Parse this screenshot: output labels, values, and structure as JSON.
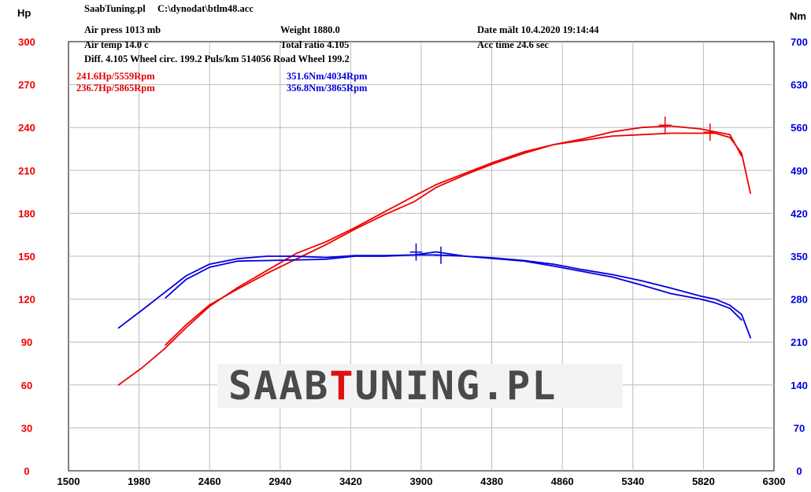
{
  "header": {
    "app_title": "SaabTuning.pl",
    "file_path": "C:\\dynodat\\btlm48.acc",
    "air_press": "Air press  1013 mb",
    "air_temp": "Air temp  14.0 c",
    "diff": "Diff.    4.105  Wheel circ. 199.2  Puls/km  514056  Road Wheel 199.2",
    "weight": "Weight   1880.0",
    "total_ratio": "Total ratio 4.105",
    "date": "Date mält 10.4.2020 19:14:44",
    "acc_time": "Acc time   24.6 sec"
  },
  "peaks": {
    "hp1": "241.6Hp/5559Rpm",
    "hp2": "236.7Hp/5865Rpm",
    "nm1": "351.6Nm/4034Rpm",
    "nm2": "356.8Nm/3865Rpm"
  },
  "logo": {
    "text_a": "SAAB",
    "text_t": "T",
    "text_b": "UNING.PL"
  },
  "colors": {
    "power": "#ee0000",
    "torque": "#0000dd",
    "grid": "#bbbbbb"
  },
  "chart_data": {
    "type": "line",
    "x_axis": {
      "ticks": [
        1500,
        1980,
        2460,
        2940,
        3420,
        3900,
        4380,
        4860,
        5340,
        5820,
        6300
      ],
      "range": [
        1500,
        6300
      ]
    },
    "y_left": {
      "label": "Hp",
      "ticks": [
        0,
        30,
        60,
        90,
        120,
        150,
        180,
        210,
        240,
        270,
        300
      ],
      "range": [
        0,
        300
      ]
    },
    "y_right": {
      "label": "Nm",
      "ticks": [
        0,
        70,
        140,
        210,
        280,
        350,
        420,
        490,
        560,
        630,
        700
      ],
      "range": [
        0,
        700
      ]
    },
    "grid": true,
    "series": [
      {
        "axis": "left",
        "color": "#ee0000",
        "x": [
          1840,
          2000,
          2150,
          2300,
          2460,
          2650,
          2850,
          3050,
          3250,
          3450,
          3650,
          3850,
          4000,
          4200,
          4400,
          4600,
          4800,
          5000,
          5200,
          5400,
          5600,
          5800,
          5900,
          6000,
          6080
        ],
        "y": [
          60,
          72,
          85,
          100,
          115,
          128,
          140,
          152,
          160,
          170,
          181,
          192,
          200,
          208,
          216,
          223,
          228,
          232,
          237,
          240,
          241,
          239,
          237,
          235,
          220
        ]
      },
      {
        "axis": "left",
        "color": "#ee0000",
        "x": [
          2160,
          2300,
          2460,
          2650,
          2850,
          3050,
          3250,
          3450,
          3650,
          3850,
          4000,
          4200,
          4400,
          4600,
          4800,
          5000,
          5200,
          5400,
          5600,
          5800,
          5900,
          6000,
          6080,
          6140
        ],
        "y": [
          88,
          102,
          116,
          127,
          138,
          148,
          158,
          169,
          179,
          188,
          198,
          207,
          215,
          222,
          228,
          231,
          234,
          235,
          236,
          236,
          236,
          233,
          222,
          194
        ]
      },
      {
        "axis": "right",
        "color": "#0000dd",
        "x": [
          1840,
          2000,
          2150,
          2300,
          2460,
          2650,
          2850,
          3050,
          3250,
          3450,
          3650,
          3850,
          4000,
          4200,
          4400,
          4600,
          4800,
          5000,
          5200,
          5400,
          5600,
          5800,
          5900,
          6000,
          6080
        ],
        "y": [
          233,
          262,
          290,
          318,
          337,
          346,
          350,
          350,
          348,
          351,
          351,
          352,
          352,
          350,
          346,
          342,
          334,
          325,
          316,
          303,
          289,
          280,
          274,
          265,
          246
        ]
      },
      {
        "axis": "right",
        "color": "#0000dd",
        "x": [
          2160,
          2300,
          2460,
          2650,
          2850,
          3050,
          3250,
          3450,
          3650,
          3850,
          4000,
          4200,
          4400,
          4600,
          4800,
          5000,
          5200,
          5400,
          5600,
          5800,
          5900,
          6000,
          6080,
          6140
        ],
        "y": [
          282,
          312,
          332,
          342,
          343,
          344,
          345,
          350,
          350,
          352,
          357,
          350,
          347,
          343,
          337,
          328,
          320,
          310,
          298,
          285,
          280,
          270,
          255,
          217
        ]
      }
    ],
    "markers": [
      {
        "axis": "left",
        "x": 5559,
        "y": 241.6,
        "color": "#ee0000"
      },
      {
        "axis": "left",
        "x": 5865,
        "y": 236.7,
        "color": "#ee0000"
      },
      {
        "axis": "right",
        "x": 4034,
        "y": 351.6,
        "color": "#0000dd"
      },
      {
        "axis": "right",
        "x": 3865,
        "y": 356.8,
        "color": "#0000dd"
      }
    ]
  }
}
